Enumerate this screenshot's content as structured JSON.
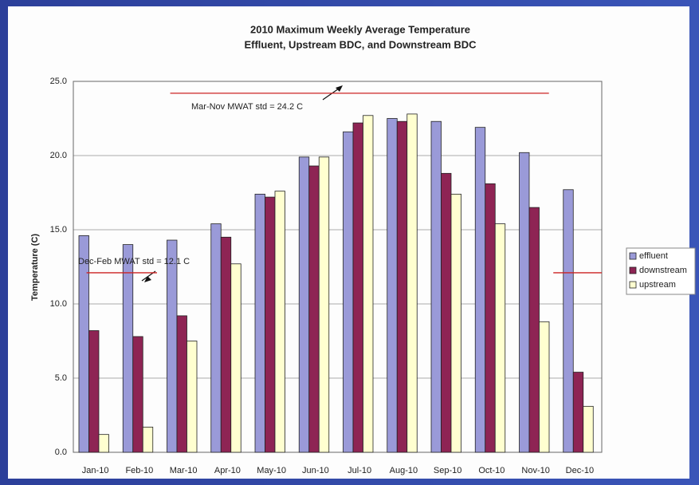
{
  "chart_data": {
    "type": "bar",
    "title": "2010 Maximum Weekly Average Temperature",
    "subtitle": "Effluent, Upstream BDC, and Downstream BDC",
    "y_label": "Temperature (C)",
    "categories": [
      "Jan-10",
      "Feb-10",
      "Mar-10",
      "Apr-10",
      "May-10",
      "Jun-10",
      "Jul-10",
      "Aug-10",
      "Sep-10",
      "Oct-10",
      "Nov-10",
      "Dec-10"
    ],
    "series": [
      {
        "name": "effluent",
        "color": "#9a9ad8",
        "values": [
          14.6,
          14.0,
          14.3,
          15.4,
          17.4,
          19.9,
          21.6,
          22.5,
          22.3,
          21.9,
          20.2,
          17.7
        ]
      },
      {
        "name": "downstream",
        "color": "#8e2454",
        "values": [
          8.2,
          7.8,
          9.2,
          14.5,
          17.2,
          19.3,
          22.2,
          22.3,
          18.8,
          18.1,
          16.5,
          5.4
        ]
      },
      {
        "name": "upstream",
        "color": "#ffffd0",
        "values": [
          1.2,
          1.7,
          7.5,
          12.7,
          17.6,
          19.9,
          22.7,
          22.8,
          17.4,
          15.4,
          8.8,
          3.1
        ]
      }
    ],
    "ylim": [
      0,
      25
    ],
    "yticks": [
      {
        "value": 0,
        "label": "0.0"
      },
      {
        "value": 5,
        "label": "5.0"
      },
      {
        "value": 10,
        "label": "10.0"
      },
      {
        "value": 15,
        "label": "15.0"
      },
      {
        "value": 20,
        "label": "20.0"
      },
      {
        "value": 25,
        "label": "25.0"
      }
    ],
    "grid": true,
    "legend": "right",
    "reference_lines": [
      {
        "value": 24.2,
        "label": "Mar-Nov MWAT std = 24.2 C",
        "color": "#cc2222"
      },
      {
        "value": 12.1,
        "label": "Dec-Feb MWAT std = 12.1 C",
        "color": "#cc2222"
      }
    ]
  }
}
